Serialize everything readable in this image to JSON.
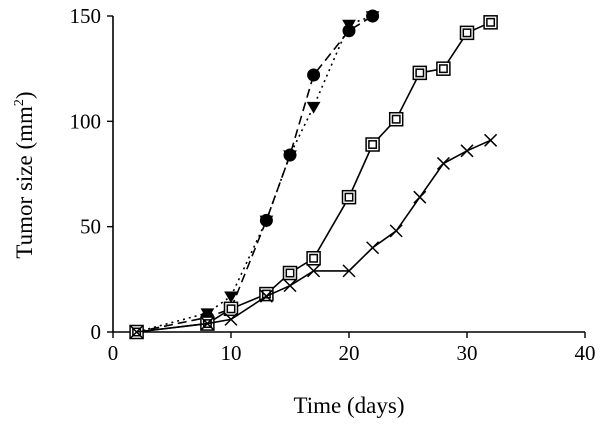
{
  "chart_data": {
    "type": "line",
    "title": "",
    "xlabel": "Time (days)",
    "ylabel": "Tumor size (mm",
    "ylabel_sup": "2",
    "ylabel_close": ")",
    "xlim": [
      0,
      40
    ],
    "ylim": [
      0,
      150
    ],
    "xticks": [
      0,
      10,
      20,
      30,
      40
    ],
    "yticks": [
      0,
      50,
      100,
      150
    ],
    "grid": false,
    "legend": "none",
    "series": [
      {
        "marker": "filled-circle",
        "line": "dashed",
        "x": [
          2,
          8,
          10,
          13,
          15,
          17,
          20,
          22
        ],
        "y": [
          0,
          7,
          11,
          53,
          84,
          122,
          143,
          150
        ]
      },
      {
        "marker": "filled-triangle-down",
        "line": "dotted",
        "x": [
          2,
          8,
          10,
          13,
          15,
          17,
          20,
          22
        ],
        "y": [
          0,
          9,
          17,
          53,
          84,
          107,
          146,
          150
        ]
      },
      {
        "marker": "open-square",
        "line": "solid",
        "x": [
          2,
          8,
          10,
          13,
          15,
          17,
          20,
          22,
          24,
          26,
          28,
          30,
          32
        ],
        "y": [
          0,
          4,
          11,
          18,
          28,
          35,
          64,
          89,
          101,
          123,
          125,
          142,
          147
        ]
      },
      {
        "marker": "cross",
        "line": "solid",
        "x": [
          2,
          8,
          10,
          13,
          15,
          17,
          20,
          22,
          24,
          26,
          28,
          30,
          32
        ],
        "y": [
          0,
          4,
          6,
          17,
          22,
          29,
          29,
          40,
          48,
          64,
          80,
          86,
          91
        ]
      }
    ]
  }
}
